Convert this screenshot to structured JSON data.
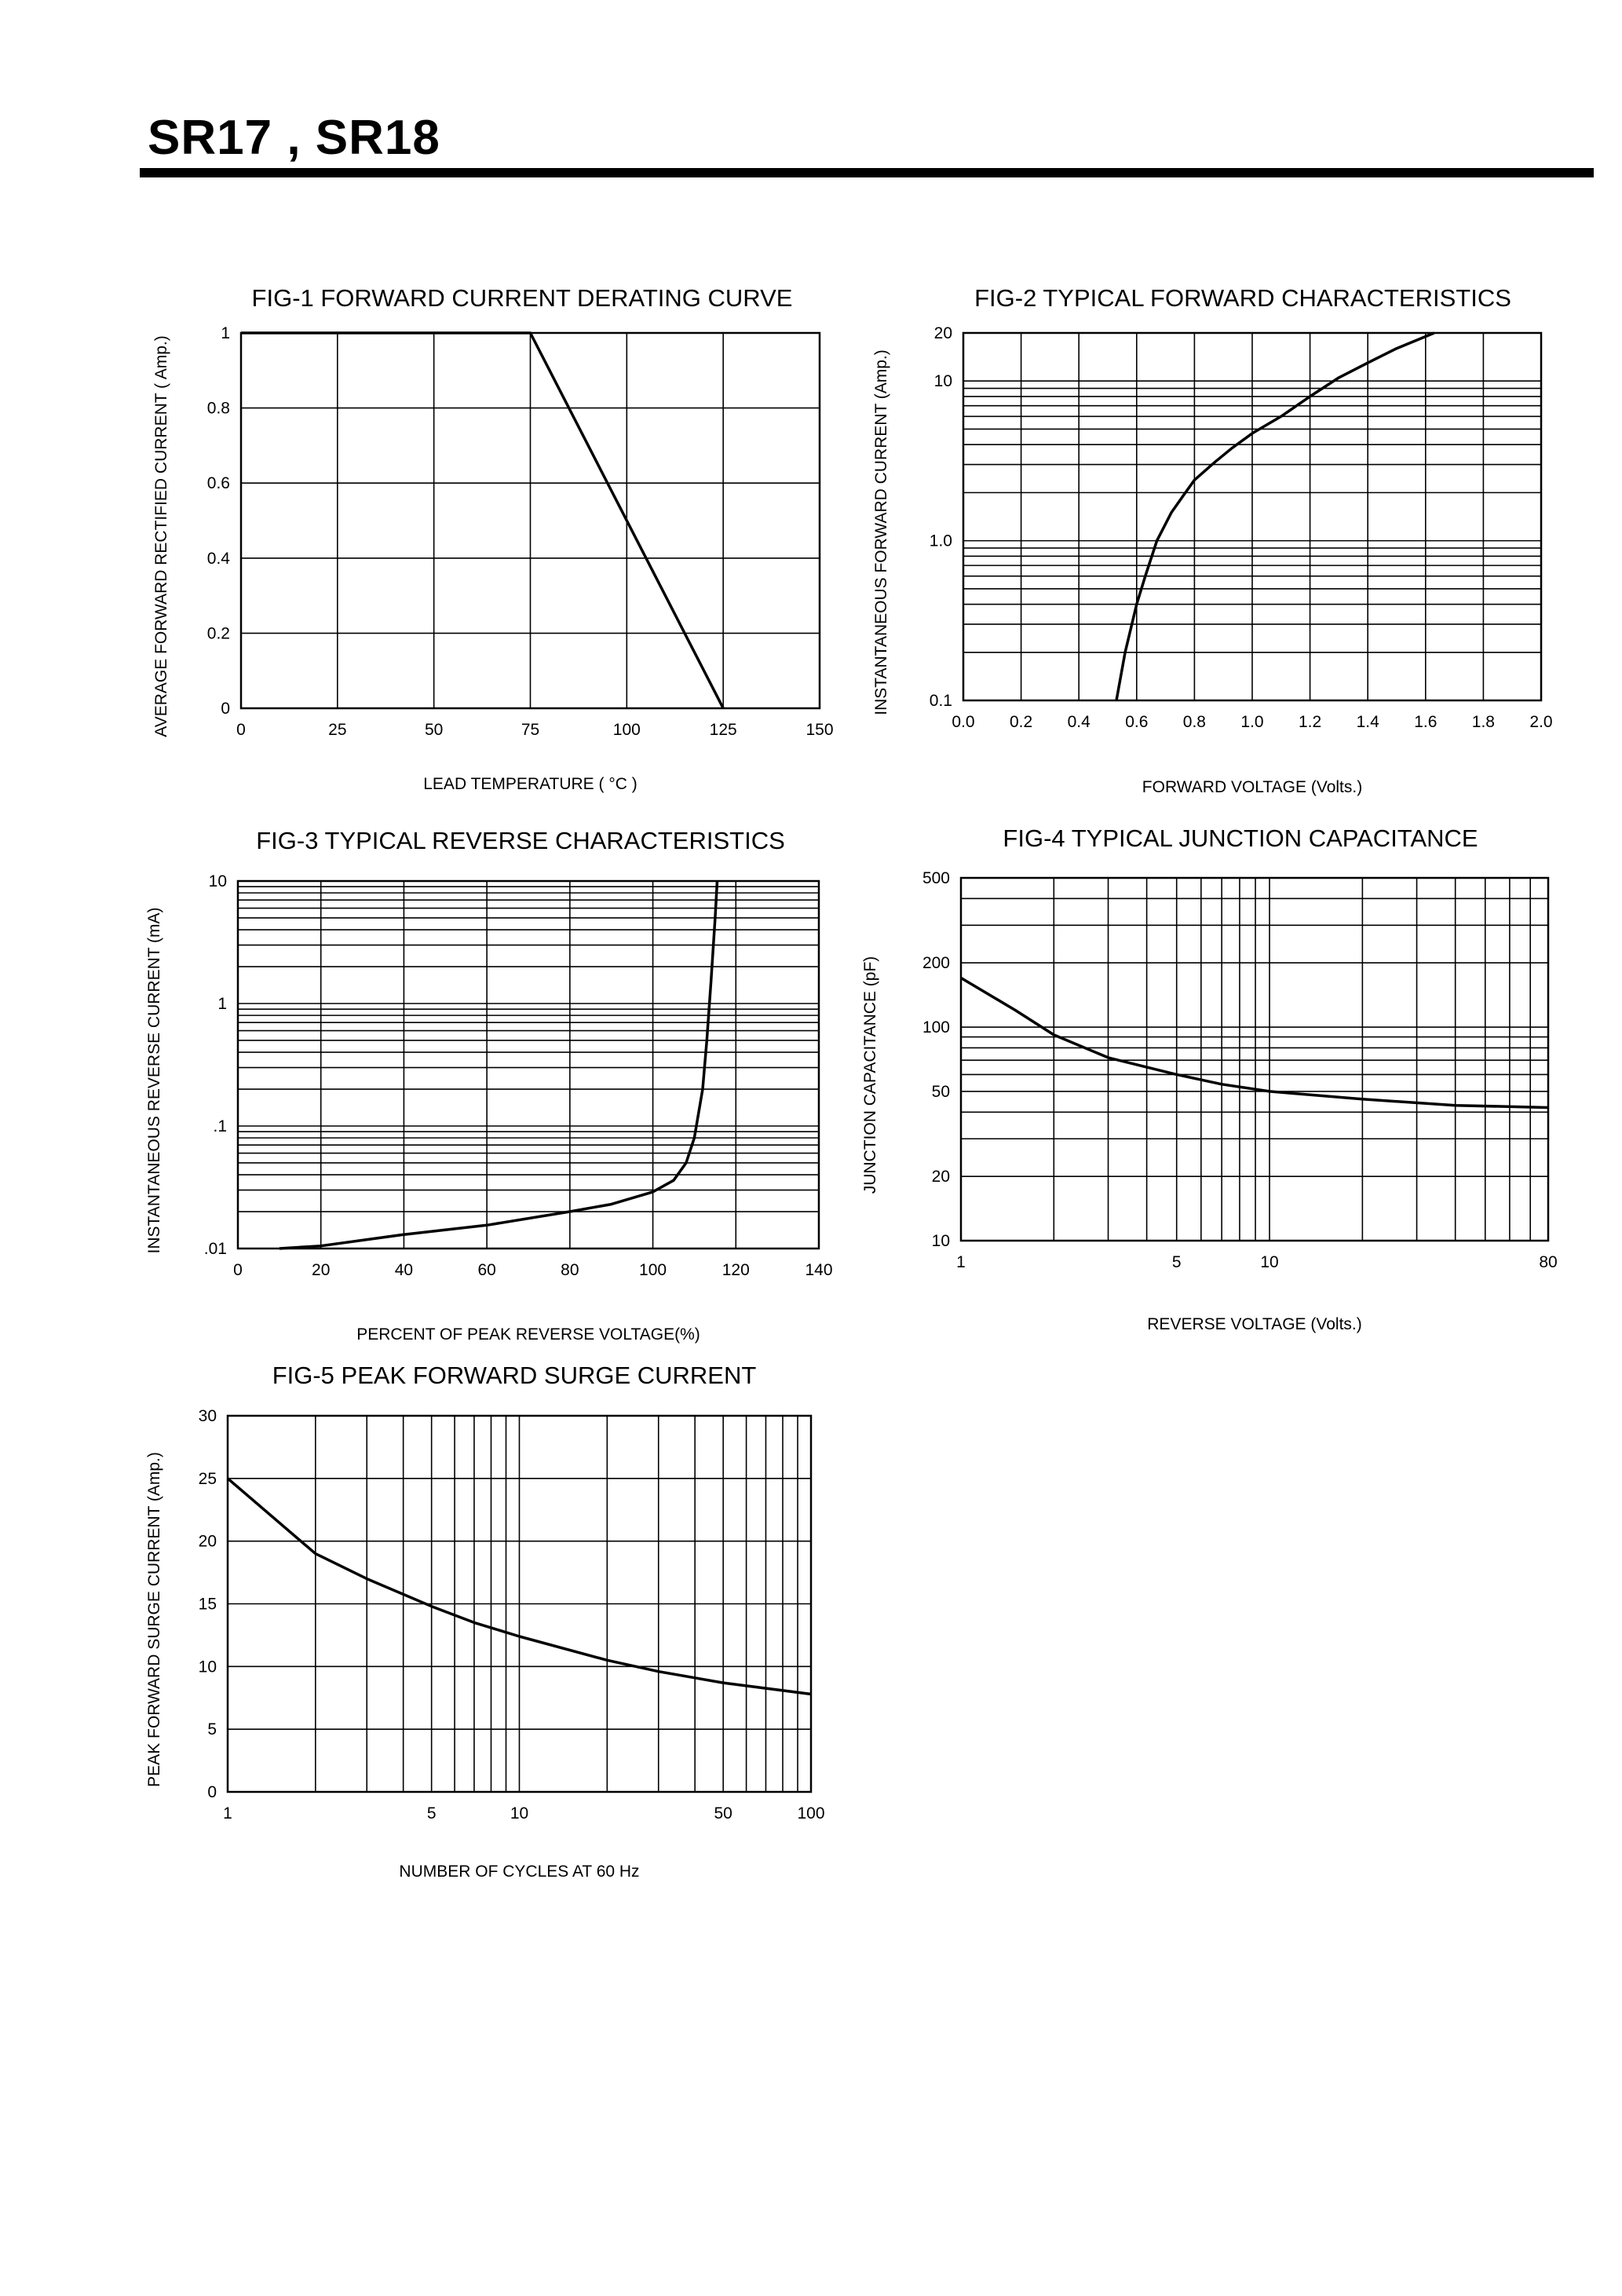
{
  "header": {
    "title": "SR17 , SR18"
  },
  "chart_data": [
    {
      "type": "line",
      "title": "FIG-1 FORWARD CURRENT DERATING CURVE",
      "xlabel": "LEAD TEMPERATURE ( °C )",
      "ylabel": "AVERAGE FORWARD RECTIFIED CURRENT ( Amp.)",
      "xscale": "linear",
      "yscale": "linear",
      "xlim": [
        0,
        150
      ],
      "ylim": [
        0,
        1
      ],
      "x_ticks": [
        [
          0,
          "0"
        ],
        [
          25,
          "25"
        ],
        [
          50,
          "50"
        ],
        [
          75,
          "75"
        ],
        [
          100,
          "100"
        ],
        [
          125,
          "125"
        ],
        [
          150,
          "150"
        ]
      ],
      "y_ticks": [
        [
          0,
          "0"
        ],
        [
          0.2,
          "0.2"
        ],
        [
          0.4,
          "0.4"
        ],
        [
          0.6,
          "0.6"
        ],
        [
          0.8,
          "0.8"
        ],
        [
          1,
          "1"
        ]
      ],
      "x_grid": [
        25,
        50,
        75,
        100,
        125
      ],
      "y_grid": [
        0.2,
        0.4,
        0.6,
        0.8
      ],
      "series": [
        {
          "name": "derating",
          "x": [
            0,
            75,
            125
          ],
          "y": [
            1,
            1,
            0
          ]
        }
      ]
    },
    {
      "type": "line",
      "title": "FIG-2 TYPICAL FORWARD CHARACTERISTICS",
      "xlabel": "FORWARD VOLTAGE (Volts.)",
      "ylabel": "INSTANTANEOUS FORWARD CURRENT (Amp.)",
      "xscale": "linear",
      "yscale": "log",
      "xlim": [
        0,
        2.0
      ],
      "ylim": [
        0.1,
        20
      ],
      "x_ticks": [
        [
          0,
          "0.0"
        ],
        [
          0.2,
          "0.2"
        ],
        [
          0.4,
          "0.4"
        ],
        [
          0.6,
          "0.6"
        ],
        [
          0.8,
          "0.8"
        ],
        [
          1.0,
          "1.0"
        ],
        [
          1.2,
          "1.2"
        ],
        [
          1.4,
          "1.4"
        ],
        [
          1.6,
          "1.6"
        ],
        [
          1.8,
          "1.8"
        ],
        [
          2.0,
          "2.0"
        ]
      ],
      "y_ticks": [
        [
          0.1,
          "0.1"
        ],
        [
          1,
          "1.0"
        ],
        [
          10,
          "10"
        ],
        [
          20,
          "20"
        ]
      ],
      "x_grid": [
        0.2,
        0.4,
        0.6,
        0.8,
        1.0,
        1.2,
        1.4,
        1.6,
        1.8
      ],
      "y_grid": [
        0.2,
        0.3,
        0.4,
        0.5,
        0.6,
        0.7,
        0.8,
        0.9,
        1,
        2,
        3,
        4,
        5,
        6,
        7,
        8,
        9,
        10
      ],
      "series": [
        {
          "name": "forward",
          "x": [
            0.53,
            0.56,
            0.6,
            0.63,
            0.67,
            0.72,
            0.76,
            0.8,
            0.87,
            0.93,
            1.0,
            1.1,
            1.2,
            1.3,
            1.4,
            1.5,
            1.63
          ],
          "y": [
            0.1,
            0.2,
            0.4,
            0.6,
            1.0,
            1.5,
            1.9,
            2.4,
            3.1,
            3.8,
            4.7,
            6.0,
            8.0,
            10.5,
            13,
            16,
            20
          ]
        }
      ]
    },
    {
      "type": "line",
      "title": "FIG-3 TYPICAL REVERSE CHARACTERISTICS",
      "xlabel": "PERCENT OF PEAK REVERSE VOLTAGE(%)",
      "ylabel": "INSTANTANEOUS REVERSE CURRENT (mA)",
      "xscale": "linear",
      "yscale": "log",
      "xlim": [
        0,
        140
      ],
      "ylim": [
        0.01,
        10
      ],
      "x_ticks": [
        [
          0,
          "0"
        ],
        [
          20,
          "20"
        ],
        [
          40,
          "40"
        ],
        [
          60,
          "60"
        ],
        [
          80,
          "80"
        ],
        [
          100,
          "100"
        ],
        [
          120,
          "120"
        ],
        [
          140,
          "140"
        ]
      ],
      "y_ticks": [
        [
          0.01,
          ".01"
        ],
        [
          0.1,
          ".1"
        ],
        [
          1,
          "1"
        ],
        [
          10,
          "10"
        ]
      ],
      "x_grid": [
        20,
        40,
        60,
        80,
        100,
        120
      ],
      "y_grid": [
        0.02,
        0.03,
        0.04,
        0.05,
        0.06,
        0.07,
        0.08,
        0.09,
        0.1,
        0.2,
        0.3,
        0.4,
        0.5,
        0.6,
        0.7,
        0.8,
        0.9,
        1,
        2,
        3,
        4,
        5,
        6,
        7,
        8,
        9
      ],
      "series": [
        {
          "name": "reverse",
          "x": [
            10,
            20,
            40,
            60,
            80,
            90,
            100,
            105,
            108,
            110,
            112,
            113,
            114,
            115,
            115.5
          ],
          "y": [
            0.01,
            0.0105,
            0.013,
            0.0155,
            0.02,
            0.023,
            0.029,
            0.036,
            0.05,
            0.08,
            0.2,
            0.5,
            1.5,
            5,
            10
          ]
        }
      ]
    },
    {
      "type": "line",
      "title": "FIG-4 TYPICAL JUNCTION CAPACITANCE",
      "xlabel": "REVERSE VOLTAGE (Volts.)",
      "ylabel": "JUNCTION CAPACITANCE (pF)",
      "xscale": "log",
      "yscale": "log",
      "xlim": [
        1,
        80
      ],
      "ylim": [
        10,
        500
      ],
      "x_ticks": [
        [
          1,
          "1"
        ],
        [
          5,
          "5"
        ],
        [
          10,
          "10"
        ],
        [
          80,
          "80"
        ]
      ],
      "y_ticks": [
        [
          10,
          "10"
        ],
        [
          20,
          "20"
        ],
        [
          50,
          "50"
        ],
        [
          100,
          "100"
        ],
        [
          200,
          "200"
        ],
        [
          500,
          "500"
        ]
      ],
      "x_grid": [
        2,
        3,
        4,
        5,
        6,
        7,
        8,
        9,
        10,
        20,
        30,
        40,
        50,
        60,
        70
      ],
      "y_grid": [
        20,
        30,
        40,
        50,
        60,
        70,
        80,
        90,
        100,
        200,
        300,
        400
      ],
      "series": [
        {
          "name": "capacitance",
          "x": [
            1,
            1.5,
            2,
            3,
            5,
            7,
            10,
            20,
            40,
            80
          ],
          "y": [
            170,
            120,
            92,
            72,
            60,
            54,
            50,
            46,
            43,
            42
          ]
        }
      ]
    },
    {
      "type": "line",
      "title": "FIG-5 PEAK FORWARD SURGE CURRENT",
      "xlabel": "NUMBER OF CYCLES AT 60 Hz",
      "ylabel": "PEAK FORWARD SURGE CURRENT (Amp.)",
      "xscale": "log",
      "yscale": "linear",
      "xlim": [
        1,
        100
      ],
      "ylim": [
        0,
        30
      ],
      "x_ticks": [
        [
          1,
          "1"
        ],
        [
          5,
          "5"
        ],
        [
          10,
          "10"
        ],
        [
          50,
          "50"
        ],
        [
          100,
          "100"
        ]
      ],
      "y_ticks": [
        [
          0,
          "0"
        ],
        [
          5,
          "5"
        ],
        [
          10,
          "10"
        ],
        [
          15,
          "15"
        ],
        [
          20,
          "20"
        ],
        [
          25,
          "25"
        ],
        [
          30,
          "30"
        ]
      ],
      "x_grid": [
        2,
        3,
        4,
        5,
        6,
        7,
        8,
        9,
        10,
        20,
        30,
        40,
        50,
        60,
        70,
        80,
        90
      ],
      "y_grid": [
        5,
        10,
        15,
        20,
        25
      ],
      "series": [
        {
          "name": "surge",
          "x": [
            1,
            2,
            3,
            5,
            7,
            10,
            20,
            30,
            50,
            100
          ],
          "y": [
            25,
            19,
            17,
            14.8,
            13.5,
            12.4,
            10.5,
            9.6,
            8.7,
            7.8
          ]
        }
      ]
    }
  ]
}
